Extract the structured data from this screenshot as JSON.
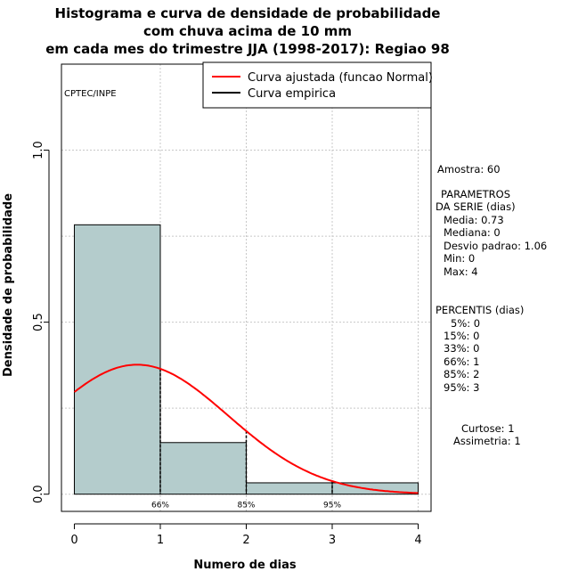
{
  "title_lines": [
    "Histograma e curva de densidade de probabilidade",
    "com chuva acima de 10 mm",
    "em cada mes do trimestre JJA (1998-2017): Regiao 98"
  ],
  "watermark": "CPTEC/INPE",
  "colors": {
    "bars": "#b4cccc",
    "curve": "#ff0000",
    "grid": "#c8c8c8",
    "axis": "#000000"
  },
  "legend": {
    "fitted": "Curva ajustada (funcao Normal)",
    "empirical": "Curva empirica"
  },
  "stats": {
    "amostra": "Amostra: 60",
    "param_header1": "PARAMETROS",
    "param_header2": "DA SERIE (dias)",
    "media": "Media: 0.73",
    "mediana": "Mediana: 0",
    "desvio": "Desvio padrao: 1.06",
    "min": "Min: 0",
    "max": "Max: 4",
    "perc_header": "PERCENTIS (dias)",
    "p5": "5%: 0",
    "p15": "15%: 0",
    "p33": "33%: 0",
    "p66": "66%: 1",
    "p85": "85%: 2",
    "p95": "95%: 3",
    "curtose": "Curtose: 1",
    "assimetria": "Assimetria: 1"
  },
  "chart_data": {
    "type": "bar",
    "xlabel": "Numero de dias",
    "ylabel": "Densidade de probabilidade",
    "xlim": [
      -0.15,
      4.15
    ],
    "ylim": [
      -0.05,
      1.25
    ],
    "x_ticks": [
      0,
      1,
      2,
      3,
      4
    ],
    "y_ticks": [
      0.0,
      0.5,
      1.0
    ],
    "y_tick_labels": [
      "0.0",
      "0.5",
      "1.0"
    ],
    "bins": [
      {
        "from": 0,
        "to": 1,
        "density": 0.783
      },
      {
        "from": 1,
        "to": 2,
        "density": 0.15
      },
      {
        "from": 2,
        "to": 3,
        "density": 0.033
      },
      {
        "from": 3,
        "to": 4,
        "density": 0.033
      }
    ],
    "fitted_normal": {
      "mean": 0.73,
      "sd": 1.06
    },
    "percentile_markers": [
      {
        "x": 1,
        "label": "66%"
      },
      {
        "x": 2,
        "label": "85%"
      },
      {
        "x": 3,
        "label": "95%"
      }
    ],
    "grid": true,
    "legend_position": "top-right"
  }
}
